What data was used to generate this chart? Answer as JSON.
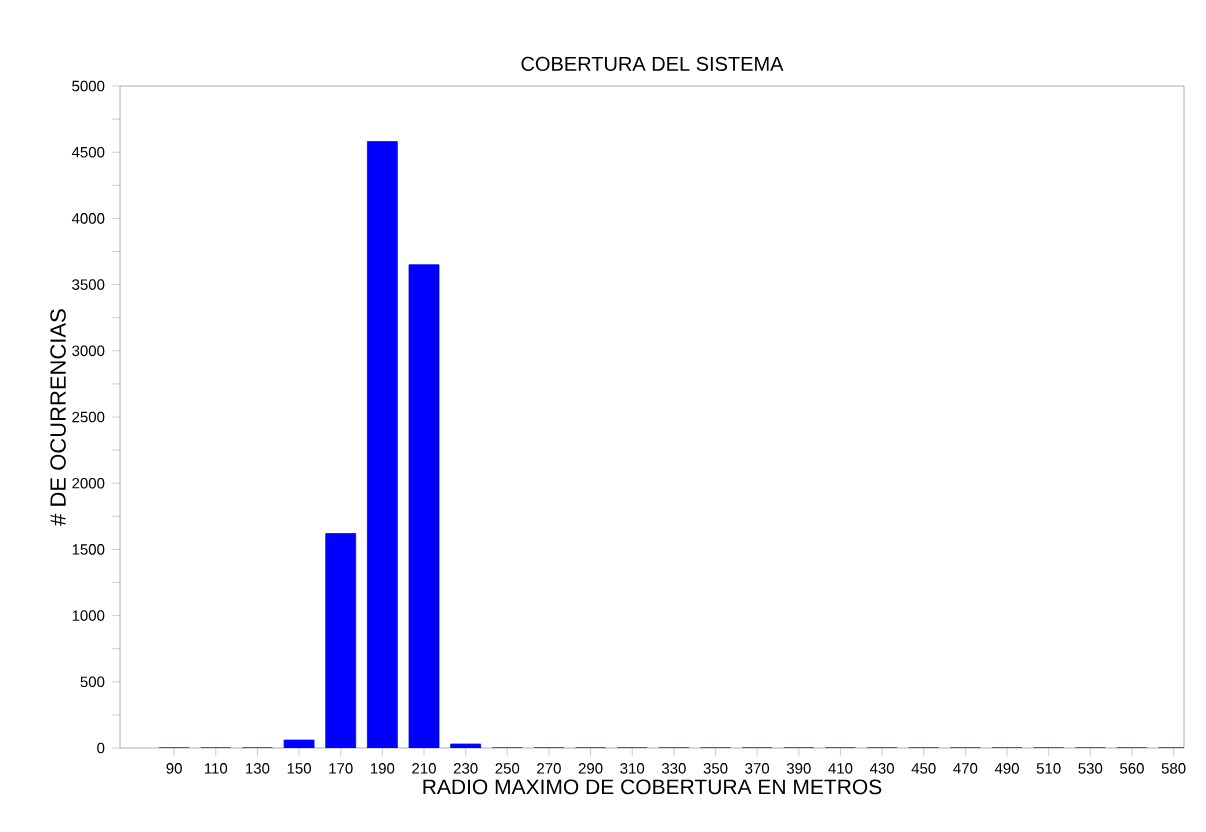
{
  "chart_data": {
    "type": "bar",
    "title": "COBERTURA DEL SISTEMA",
    "xlabel": "RADIO MAXIMO DE COBERTURA EN METROS",
    "ylabel": "# DE OCURRENCIAS",
    "categories": [
      "90",
      "110",
      "130",
      "150",
      "170",
      "190",
      "210",
      "230",
      "250",
      "270",
      "290",
      "310",
      "330",
      "350",
      "370",
      "390",
      "410",
      "430",
      "450",
      "470",
      "490",
      "510",
      "530",
      "560",
      "580"
    ],
    "values": [
      0,
      0,
      0,
      60,
      1620,
      4580,
      3650,
      30,
      0,
      0,
      0,
      0,
      0,
      0,
      0,
      0,
      0,
      0,
      0,
      0,
      0,
      0,
      0,
      0,
      0
    ],
    "color": "#0000ff",
    "ylim": [
      0,
      5000
    ],
    "yticks": [
      0,
      {
        "value": 250,
        "label": null
      },
      500,
      {
        "value": 750,
        "label": null
      },
      1000,
      {
        "value": 1250,
        "label": null
      },
      1500,
      {
        "value": 1750,
        "label": null
      },
      2000,
      {
        "value": 2250,
        "label": null
      },
      2500,
      {
        "value": 2750,
        "label": null
      },
      3000,
      {
        "value": 3250,
        "label": null
      },
      3500,
      {
        "value": 3750,
        "label": null
      },
      4000,
      {
        "value": 4250,
        "label": null
      },
      4500,
      {
        "value": 4750,
        "label": null
      },
      5000
    ],
    "grid": false
  }
}
